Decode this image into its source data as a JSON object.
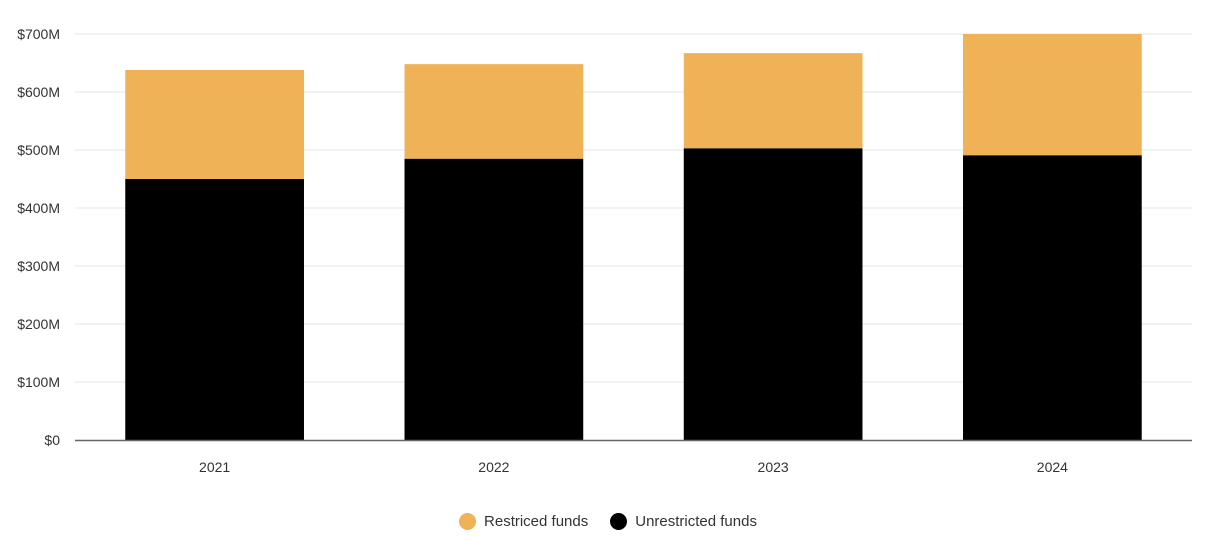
{
  "chart_data": {
    "type": "bar",
    "stacked": true,
    "categories": [
      "2021",
      "2022",
      "2023",
      "2024"
    ],
    "series": [
      {
        "name": "Unrestricted funds",
        "values": [
          450,
          485,
          503,
          491
        ],
        "color": "#000000"
      },
      {
        "name": "Restriced funds",
        "values": [
          188,
          163,
          164,
          210
        ],
        "color": "#EFB257"
      }
    ],
    "ylim": [
      0,
      700
    ],
    "yticks": [
      0,
      100,
      200,
      300,
      400,
      500,
      600,
      700
    ],
    "ytick_labels": [
      "$0",
      "$100M",
      "$200M",
      "$300M",
      "$400M",
      "$500M",
      "$600M",
      "$700M"
    ],
    "grid": true,
    "legend_position": "bottom",
    "legend_order": [
      "Restriced funds",
      "Unrestricted funds"
    ]
  }
}
